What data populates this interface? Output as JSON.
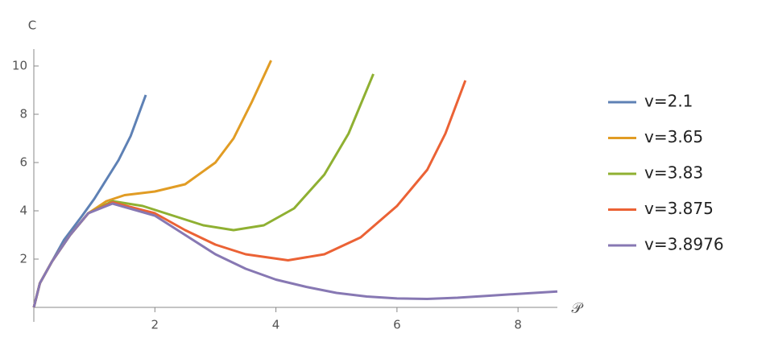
{
  "chart_data": {
    "type": "line",
    "x_label": "𝒫",
    "y_label": "C",
    "xlim": [
      0,
      8.65
    ],
    "ylim": [
      0,
      10.7
    ],
    "xticks": [
      2,
      4,
      6,
      8
    ],
    "yticks": [
      2,
      4,
      6,
      8,
      10
    ],
    "series": [
      {
        "name": "v=2.1",
        "color": "#5e81b5",
        "x": [
          0,
          0.1,
          0.3,
          0.5,
          0.8,
          1.0,
          1.2,
          1.4,
          1.6,
          1.85
        ],
        "values": [
          0,
          1.0,
          1.9,
          2.8,
          3.8,
          4.5,
          5.3,
          6.1,
          7.1,
          8.8
        ]
      },
      {
        "name": "v=3.65",
        "color": "#e19c24",
        "x": [
          0,
          0.1,
          0.3,
          0.6,
          0.9,
          1.2,
          1.5,
          2.0,
          2.5,
          3.0,
          3.3,
          3.6,
          3.92
        ],
        "values": [
          0,
          1.0,
          1.9,
          3.0,
          3.9,
          4.4,
          4.65,
          4.8,
          5.1,
          6.0,
          7.0,
          8.5,
          10.23
        ]
      },
      {
        "name": "v=3.83",
        "color": "#8fb032",
        "x": [
          0,
          0.1,
          0.3,
          0.6,
          0.9,
          1.3,
          1.8,
          2.3,
          2.8,
          3.3,
          3.8,
          4.3,
          4.8,
          5.2,
          5.61
        ],
        "values": [
          0,
          1.0,
          1.9,
          3.0,
          3.9,
          4.4,
          4.2,
          3.8,
          3.4,
          3.2,
          3.4,
          4.1,
          5.5,
          7.2,
          9.67
        ]
      },
      {
        "name": "v=3.875",
        "color": "#eb6235",
        "x": [
          0,
          0.1,
          0.3,
          0.6,
          0.9,
          1.3,
          2.0,
          2.5,
          3.0,
          3.5,
          4.2,
          4.8,
          5.4,
          6.0,
          6.5,
          6.8,
          7.13
        ],
        "values": [
          0,
          1.0,
          1.9,
          3.0,
          3.9,
          4.35,
          3.9,
          3.2,
          2.6,
          2.2,
          1.95,
          2.2,
          2.9,
          4.2,
          5.7,
          7.2,
          9.4
        ]
      },
      {
        "name": "v=3.8976",
        "color": "#8778b3",
        "x": [
          0,
          0.1,
          0.3,
          0.6,
          0.9,
          1.3,
          2.0,
          2.5,
          3.0,
          3.5,
          4.0,
          4.5,
          5.0,
          5.5,
          6.0,
          6.5,
          7.0,
          7.5,
          8.0,
          8.65
        ],
        "values": [
          0,
          1.0,
          1.9,
          3.0,
          3.9,
          4.3,
          3.8,
          3.0,
          2.2,
          1.6,
          1.15,
          0.85,
          0.6,
          0.45,
          0.37,
          0.35,
          0.4,
          0.48,
          0.56,
          0.66
        ]
      }
    ]
  }
}
